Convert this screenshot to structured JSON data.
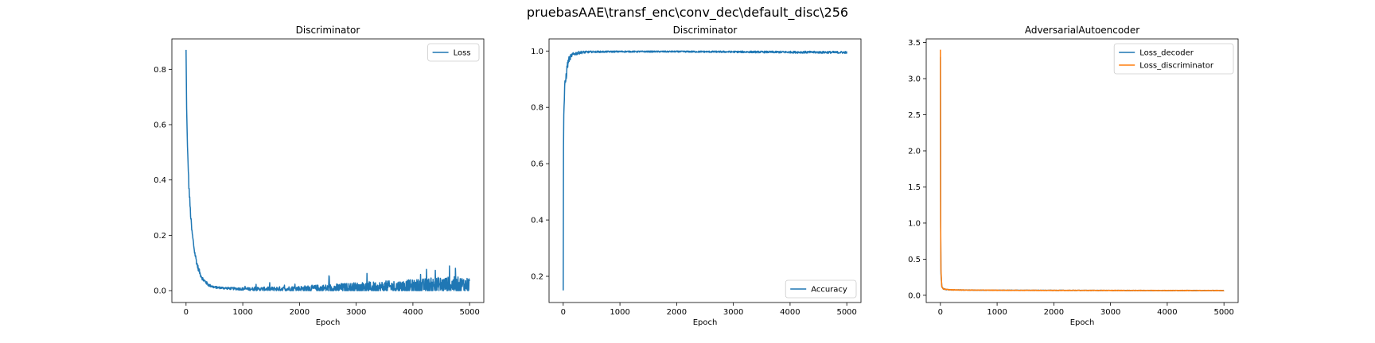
{
  "figure": {
    "suptitle": "pruebasAAE\\transf_enc\\conv_dec\\default_disc\\256"
  },
  "chart_data": [
    {
      "type": "line",
      "title": "Discriminator",
      "xlabel": "Epoch",
      "ylabel": "",
      "xlim": [
        -250,
        5250
      ],
      "ylim": [
        -0.043,
        0.91
      ],
      "xticks": [
        0,
        1000,
        2000,
        3000,
        4000,
        5000
      ],
      "yticks": [
        0.0,
        0.2,
        0.4,
        0.6,
        0.8
      ],
      "yticklabels": [
        "0.0",
        "0.2",
        "0.4",
        "0.6",
        "0.8"
      ],
      "legend_position": "top-right",
      "series": [
        {
          "name": "Loss",
          "color": "#1f77b4",
          "x": [
            0,
            10,
            25,
            50,
            75,
            100,
            150,
            200,
            250,
            300,
            400,
            500,
            750,
            1000,
            1500,
            2000,
            2500,
            3000,
            3500,
            4000,
            4500,
            5000
          ],
          "y": [
            0.87,
            0.66,
            0.52,
            0.38,
            0.29,
            0.22,
            0.14,
            0.09,
            0.06,
            0.04,
            0.02,
            0.012,
            0.008,
            0.006,
            0.006,
            0.007,
            0.008,
            0.01,
            0.012,
            0.015,
            0.02,
            0.02
          ],
          "noise_amplitude": [
            0,
            0,
            0,
            0.03,
            0.03,
            0.02,
            0.02,
            0.02,
            0.015,
            0.015,
            0.01,
            0.008,
            0.008,
            0.01,
            0.015,
            0.02,
            0.03,
            0.04,
            0.045,
            0.05,
            0.06,
            0.06
          ],
          "spike_max": 0.1
        }
      ]
    },
    {
      "type": "line",
      "title": "Discriminator",
      "xlabel": "Epoch",
      "ylabel": "",
      "xlim": [
        -250,
        5250
      ],
      "ylim": [
        0.107,
        1.043
      ],
      "xticks": [
        0,
        1000,
        2000,
        3000,
        4000,
        5000
      ],
      "yticks": [
        0.2,
        0.4,
        0.6,
        0.8,
        1.0
      ],
      "yticklabels": [
        "0.2",
        "0.4",
        "0.6",
        "0.8",
        "1.0"
      ],
      "legend_position": "bottom-right",
      "series": [
        {
          "name": "Accuracy",
          "color": "#1f77b4",
          "x": [
            0,
            5,
            10,
            25,
            50,
            75,
            100,
            150,
            200,
            300,
            500,
            1000,
            2000,
            3000,
            4000,
            5000
          ],
          "y": [
            0.15,
            0.65,
            0.78,
            0.86,
            0.91,
            0.95,
            0.97,
            0.985,
            0.99,
            0.995,
            0.997,
            0.998,
            0.998,
            0.997,
            0.996,
            0.995
          ],
          "noise_amplitude": [
            0,
            0.05,
            0.06,
            0.05,
            0.04,
            0.03,
            0.02,
            0.015,
            0.012,
            0.01,
            0.006,
            0.005,
            0.005,
            0.006,
            0.007,
            0.008
          ]
        }
      ]
    },
    {
      "type": "line",
      "title": "AdversarialAutoencoder",
      "xlabel": "Epoch",
      "ylabel": "",
      "xlim": [
        -250,
        5250
      ],
      "ylim": [
        -0.1,
        3.55
      ],
      "xticks": [
        0,
        1000,
        2000,
        3000,
        4000,
        5000
      ],
      "yticks": [
        0.0,
        0.5,
        1.0,
        1.5,
        2.0,
        2.5,
        3.0,
        3.5
      ],
      "yticklabels": [
        "0.0",
        "0.5",
        "1.0",
        "1.5",
        "2.0",
        "2.5",
        "3.0",
        "3.5"
      ],
      "legend_position": "top-right",
      "series": [
        {
          "name": "Loss_decoder",
          "color": "#1f77b4",
          "x": [
            0,
            3,
            10,
            25,
            50,
            100,
            200,
            500,
            1000,
            2000,
            3000,
            4000,
            5000
          ],
          "y": [
            3.3,
            1.2,
            0.3,
            0.12,
            0.09,
            0.08,
            0.075,
            0.072,
            0.07,
            0.068,
            0.067,
            0.066,
            0.066
          ],
          "noise_amplitude": [
            0,
            0,
            0,
            0.01,
            0.01,
            0.008,
            0.007,
            0.006,
            0.006,
            0.006,
            0.006,
            0.006,
            0.006
          ]
        },
        {
          "name": "Loss_discriminator",
          "color": "#ff7f0e",
          "x": [
            0,
            3,
            10,
            25,
            50,
            100,
            200,
            500,
            1000,
            2000,
            3000,
            4000,
            5000
          ],
          "y": [
            3.4,
            1.3,
            0.35,
            0.12,
            0.09,
            0.08,
            0.075,
            0.072,
            0.07,
            0.068,
            0.067,
            0.066,
            0.066
          ],
          "noise_amplitude": [
            0,
            0,
            0,
            0.012,
            0.012,
            0.01,
            0.008,
            0.007,
            0.007,
            0.007,
            0.007,
            0.007,
            0.007
          ]
        }
      ]
    }
  ]
}
